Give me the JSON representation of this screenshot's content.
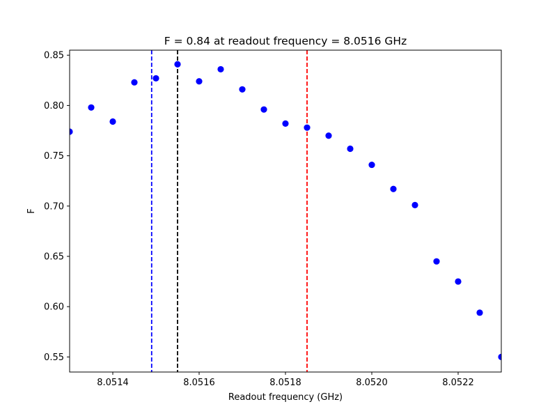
{
  "chart_data": {
    "type": "scatter",
    "title": "F = 0.84 at readout frequency = 8.0516 GHz",
    "xlabel": "Readout frequency (GHz)",
    "ylabel": "F",
    "xlim": [
      8.0513,
      8.0523
    ],
    "ylim": [
      0.535,
      0.855
    ],
    "xticks": [
      8.0514,
      8.0516,
      8.0518,
      8.052,
      8.0522
    ],
    "xtick_labels": [
      "8.0514",
      "8.0516",
      "8.0518",
      "8.0520",
      "8.0522"
    ],
    "yticks": [
      0.55,
      0.6,
      0.65,
      0.7,
      0.75,
      0.8,
      0.85
    ],
    "ytick_labels": [
      "0.55",
      "0.60",
      "0.65",
      "0.70",
      "0.75",
      "0.80",
      "0.85"
    ],
    "grid": false,
    "series": [
      {
        "color": "#0000ff",
        "x": [
          8.0513,
          8.05135,
          8.0514,
          8.05145,
          8.0515,
          8.05155,
          8.0516,
          8.05165,
          8.0517,
          8.05175,
          8.0518,
          8.05185,
          8.0519,
          8.05195,
          8.052,
          8.05205,
          8.0521,
          8.05215,
          8.0522,
          8.05225,
          8.0523
        ],
        "y": [
          0.774,
          0.798,
          0.784,
          0.823,
          0.827,
          0.841,
          0.824,
          0.836,
          0.816,
          0.796,
          0.782,
          0.778,
          0.77,
          0.757,
          0.741,
          0.717,
          0.701,
          0.645,
          0.625,
          0.594,
          0.55
        ]
      }
    ],
    "vlines": [
      {
        "x": 8.05149,
        "color": "#0000ff",
        "style": "dashed"
      },
      {
        "x": 8.05155,
        "color": "#000000",
        "style": "dashed"
      },
      {
        "x": 8.05185,
        "color": "#ff0000",
        "style": "dashed"
      }
    ]
  }
}
